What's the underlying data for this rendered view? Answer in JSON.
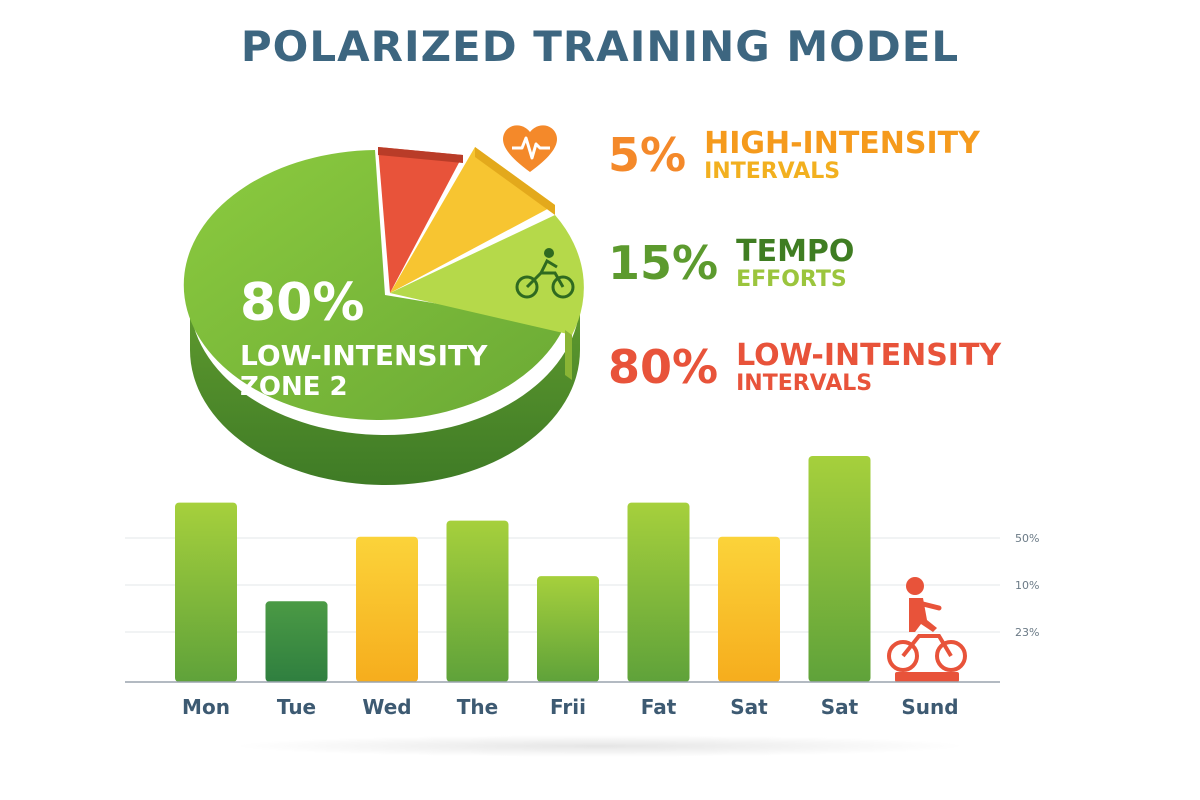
{
  "title": "POLARIZED TRAINING MODEL",
  "pie_label": {
    "pct": "80%",
    "line1": "LOW-INTENSITY",
    "line2": "ZONE 2"
  },
  "legend": [
    {
      "pct": "5%",
      "line1": "HIGH-INTENSITY",
      "line2": "INTERVALS",
      "pct_color": "#f4892a",
      "line1_color": "#f59a1c",
      "line2_color": "#f2b01f",
      "icon": "heart-rate-icon"
    },
    {
      "pct": "15%",
      "line1": "TEMPO",
      "line2": "EFFORTS",
      "pct_color": "#5c9a2e",
      "line1_color": "#3f7d22",
      "line2_color": "#9bc53d",
      "icon": "cyclist-icon"
    },
    {
      "pct": "80%",
      "line1": "LOW-INTENSITY",
      "line2": "INTERVALS",
      "pct_color": "#e8533a",
      "line1_color": "#e8533a",
      "line2_color": "#e8533a",
      "icon": ""
    }
  ],
  "chart_data": [
    {
      "type": "pie",
      "slices": [
        {
          "label": "HIGH-INTENSITY INTERVALS",
          "value": 5,
          "color": "#e8533a"
        },
        {
          "label": "TEMPO EFFORTS",
          "value": 15,
          "color": "#f7c531"
        },
        {
          "label": "LOW-INTENSITY ZONE 2",
          "value": 80,
          "color": "#7cbb3a"
        }
      ]
    },
    {
      "type": "bar",
      "categories": [
        "Mon",
        "Tue",
        "Wed",
        "The",
        "Frii",
        "Fat",
        "Sat",
        "Sat",
        "Sund"
      ],
      "values": [
        100,
        45,
        81,
        90,
        59,
        100,
        81,
        126,
        0
      ],
      "colors": [
        "#86bf3a",
        "#3f8f45",
        "#f8c42a",
        "#74b23a",
        "#5ea53a",
        "#5aa33a",
        "#f8c42a",
        "#5ea53a",
        "#e8533a"
      ],
      "right_tick_labels": [
        "50%",
        "10%",
        "23%"
      ],
      "ylim": [
        0,
        126
      ]
    }
  ]
}
